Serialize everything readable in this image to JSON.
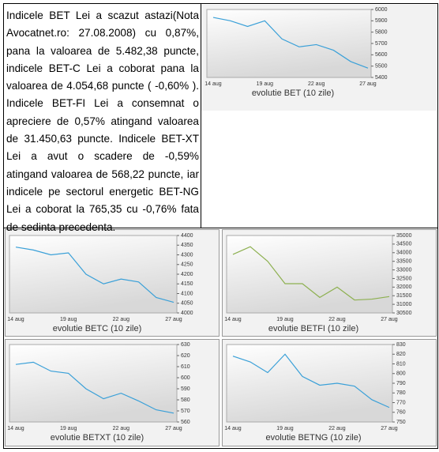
{
  "document": {
    "text": "Indicele BET Lei a scazut astazi(Nota Avocatnet.ro: 27.08.2008) cu 0,87%, pana la valoarea de 5.482,38 puncte, indicele BET-C Lei a coborat pana la valoarea de 4.054,68 puncte ( -0,60% ). Indicele BET-FI Lei a consemnat o apreciere de 0,57% atingand valoarea de 31.450,63 puncte. Indicele BET-XT Lei a avut o scadere de -0,59% atingand valoarea de 568,22 puncte, iar indicele pe sectorul energetic BET-NG Lei a coborat la 765,35 cu -0,76% fata de sedinta precedenta."
  },
  "chart_data": [
    {
      "type": "line",
      "title": "evolutie BET (10 zile)",
      "categories": [
        "14 aug",
        null,
        null,
        "19 aug",
        null,
        null,
        "22 aug",
        null,
        null,
        "27 aug"
      ],
      "values": [
        5930,
        5900,
        5850,
        5900,
        5740,
        5670,
        5690,
        5640,
        5540,
        5482
      ],
      "color": "#3aa0d8",
      "ylim": [
        5400,
        6000
      ],
      "yticks": [
        5400,
        5500,
        5600,
        5700,
        5800,
        5900,
        6000
      ]
    },
    {
      "type": "line",
      "title": "evolutie BETC (10 zile)",
      "categories": [
        "14 aug",
        null,
        null,
        "19 aug",
        null,
        null,
        "22 aug",
        null,
        null,
        "27 aug"
      ],
      "values": [
        4340,
        4325,
        4300,
        4310,
        4200,
        4150,
        4175,
        4160,
        4080,
        4055
      ],
      "color": "#3aa0d8",
      "ylim": [
        4000,
        4400
      ],
      "yticks": [
        4000,
        4050,
        4100,
        4150,
        4200,
        4250,
        4300,
        4350,
        4400
      ]
    },
    {
      "type": "line",
      "title": "evolutie BETFI (10 zile)",
      "categories": [
        "14 aug",
        null,
        null,
        "19 aug",
        null,
        null,
        "22 aug",
        null,
        null,
        "27 aug"
      ],
      "values": [
        33900,
        34350,
        33500,
        32200,
        32200,
        31400,
        32000,
        31250,
        31300,
        31450
      ],
      "color": "#8db050",
      "ylim": [
        30500,
        35000
      ],
      "yticks": [
        30500,
        31000,
        31500,
        32000,
        32500,
        33000,
        33500,
        34000,
        34500,
        35000
      ]
    },
    {
      "type": "line",
      "title": "evolutie BETXT (10 zile)",
      "categories": [
        "14 aug",
        null,
        null,
        "19 aug",
        null,
        null,
        "22 aug",
        null,
        null,
        "27 aug"
      ],
      "values": [
        612,
        614,
        606,
        604,
        590,
        581,
        586,
        579,
        571,
        568
      ],
      "color": "#3aa0d8",
      "ylim": [
        560,
        630
      ],
      "yticks": [
        560,
        570,
        580,
        590,
        600,
        610,
        620,
        630
      ]
    },
    {
      "type": "line",
      "title": "evolutie BETNG (10 zile)",
      "categories": [
        "14 aug",
        null,
        null,
        "19 aug",
        null,
        null,
        "22 aug",
        null,
        null,
        "27 aug"
      ],
      "values": [
        818,
        812,
        801,
        820,
        797,
        788,
        790,
        787,
        773,
        765
      ],
      "color": "#3aa0d8",
      "ylim": [
        750,
        830
      ],
      "yticks": [
        750,
        760,
        770,
        780,
        790,
        800,
        810,
        820,
        830
      ]
    }
  ]
}
